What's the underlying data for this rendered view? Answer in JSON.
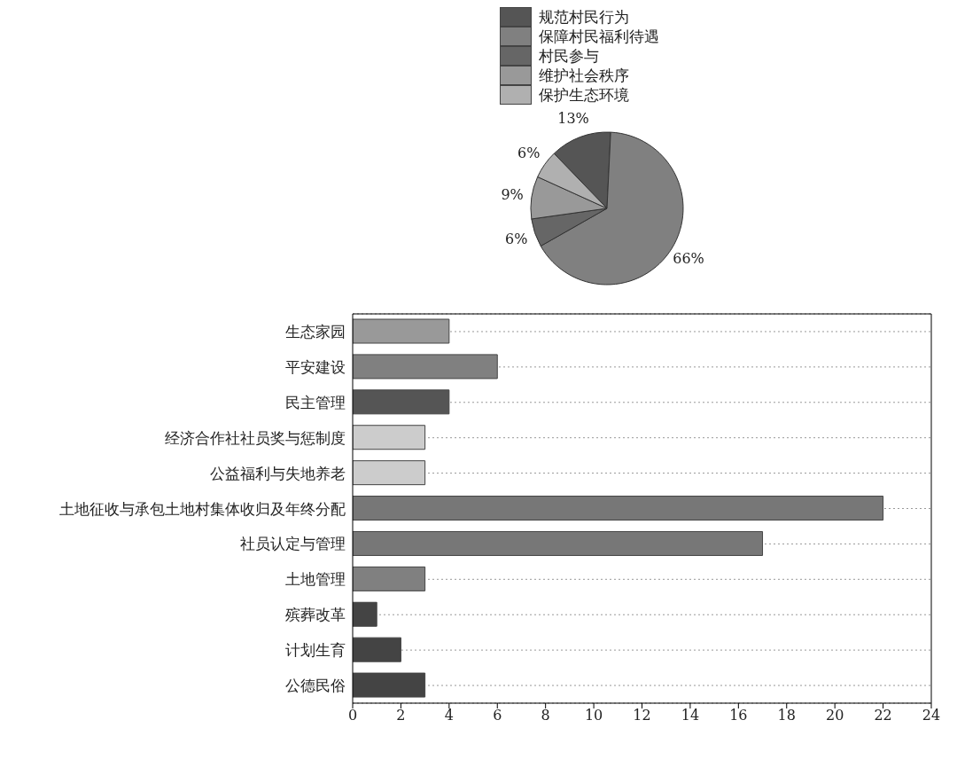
{
  "chart_data": [
    {
      "type": "pie",
      "categories": [
        "规范村民行为",
        "保障村民福利待遇",
        "村民参与",
        "维护社会秩序",
        "保护生态环境"
      ],
      "values": [
        13,
        66,
        6,
        9,
        6
      ],
      "colors": [
        "#555555",
        "#808080",
        "#666666",
        "#999999",
        "#b0b0b0"
      ],
      "value_labels": [
        "13%",
        "66%",
        "6%",
        "9%",
        "6%"
      ],
      "legend": "top"
    },
    {
      "type": "bar",
      "orientation": "horizontal",
      "categories": [
        "生态家园",
        "平安建设",
        "民主管理",
        "经济合作社社员奖与惩制度",
        "公益福利与失地养老",
        "土地征收与承包土地村集体收归及年终分配",
        "社员认定与管理",
        "土地管理",
        "殡葬改革",
        "计划生育",
        "公德民俗"
      ],
      "values": [
        4,
        6,
        4,
        3,
        3,
        22,
        17,
        3,
        1,
        2,
        3
      ],
      "colors": [
        "#999999",
        "#808080",
        "#555555",
        "#cccccc",
        "#cccccc",
        "#777777",
        "#777777",
        "#808080",
        "#444444",
        "#444444",
        "#444444"
      ],
      "xlim": [
        0,
        24
      ],
      "xticks": [
        0,
        2,
        4,
        6,
        8,
        10,
        12,
        14,
        16,
        18,
        20,
        22,
        24
      ],
      "grid": "y"
    }
  ]
}
